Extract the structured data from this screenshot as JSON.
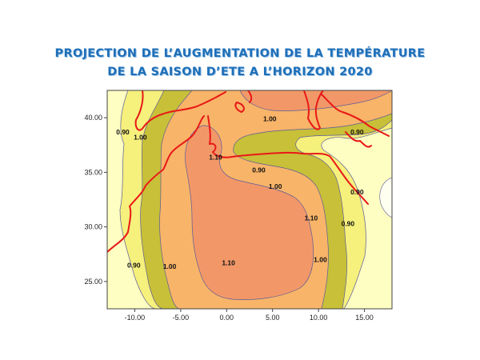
{
  "header": {
    "title_line1": "PROJECTION DE  L’AUGMENTATION  DE  LA  TEMPÉRATURE",
    "title_line2": "DE  LA SAISON D’ETE  A  L’HORIZON  2020"
  },
  "chart_data": {
    "type": "heatmap",
    "subtype": "contour map",
    "x_ticks": [
      "-10.00",
      "-5.00",
      "0.00",
      "5.00",
      "10.00",
      "15.00"
    ],
    "y_ticks": [
      "40.00",
      "35.00",
      "30.00",
      "25.00"
    ],
    "xlim": [
      -13,
      18
    ],
    "ylim": [
      22.5,
      42.5
    ],
    "contour_levels": [
      0.9,
      1.0,
      1.1
    ],
    "contour_labels": [
      {
        "text": "0.90",
        "x": -11.3,
        "y": 38.7
      },
      {
        "text": "1.00",
        "x": -9.4,
        "y": 38.2
      },
      {
        "text": "1.10",
        "x": -1.2,
        "y": 36.4
      },
      {
        "text": "1.00",
        "x": 4.7,
        "y": 39.9
      },
      {
        "text": "0.90",
        "x": 3.5,
        "y": 35.2
      },
      {
        "text": "1.00",
        "x": 5.3,
        "y": 33.7
      },
      {
        "text": "0.90",
        "x": 14.2,
        "y": 38.7
      },
      {
        "text": "0.90",
        "x": 14.2,
        "y": 33.2
      },
      {
        "text": "1.10",
        "x": 9.2,
        "y": 30.8
      },
      {
        "text": "0.90",
        "x": 13.2,
        "y": 30.3
      },
      {
        "text": "1.00",
        "x": 10.2,
        "y": 27.0
      },
      {
        "text": "0.90",
        "x": -10.1,
        "y": 26.5
      },
      {
        "text": "1.00",
        "x": -6.2,
        "y": 26.4
      },
      {
        "text": "1.10",
        "x": 0.2,
        "y": 26.7
      }
    ],
    "colors": {
      "below_0.90": "#ffffc0",
      "0.90_1.00": "#f6f07c",
      "1.00_band": "#c8c038",
      "1.00_1.10": "#f8b468",
      "above_1.10": "#f29868",
      "contour_line": "#5a5a9a",
      "border": "#ff2020"
    },
    "grid": false,
    "legend": "none"
  }
}
